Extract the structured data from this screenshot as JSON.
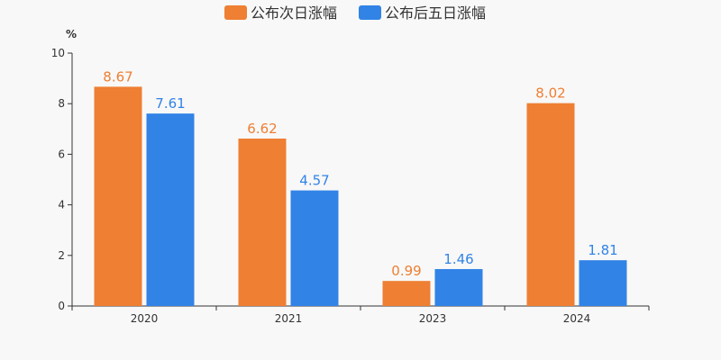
{
  "chart_data": {
    "type": "bar",
    "categories": [
      "2020",
      "2021",
      "2023",
      "2024"
    ],
    "series": [
      {
        "name": "公布次日涨幅",
        "values": [
          8.67,
          6.62,
          0.99,
          8.02
        ],
        "color": "#ee7f33"
      },
      {
        "name": "公布后五日涨幅",
        "values": [
          7.61,
          4.57,
          1.46,
          1.81
        ],
        "color": "#3283e6"
      }
    ],
    "value_labels": [
      [
        "8.67",
        "6.62",
        "0.99",
        "8.02"
      ],
      [
        "7.61",
        "4.57",
        "1.46",
        "1.81"
      ]
    ],
    "ylabel": "%",
    "ylim": [
      0,
      10
    ],
    "yticks": [
      "0",
      "2",
      "4",
      "6",
      "8",
      "10"
    ],
    "ytick_values": [
      0,
      2,
      4,
      6,
      8,
      10
    ],
    "grid": false,
    "legend_position": "top-center"
  }
}
